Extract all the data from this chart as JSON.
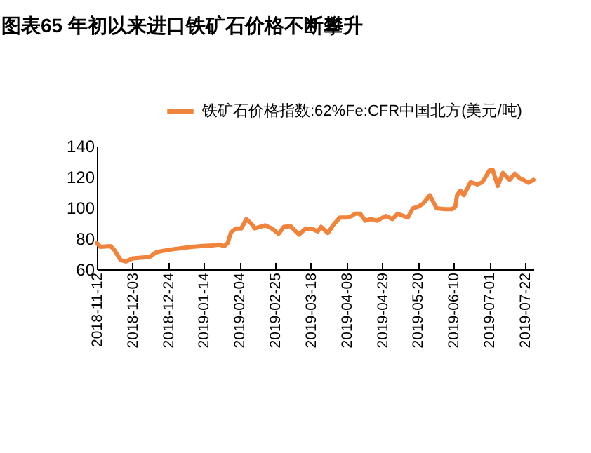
{
  "chart_data": {
    "type": "line",
    "title": "图表65 年初以来进口铁矿石价格不断攀升",
    "x": [
      "2018-11-12",
      "2018-11-14",
      "2018-11-20",
      "2018-11-22",
      "2018-11-26",
      "2018-11-29",
      "2018-12-03",
      "2018-12-08",
      "2018-12-13",
      "2018-12-17",
      "2018-12-21",
      "2018-12-27",
      "2019-01-03",
      "2019-01-07",
      "2019-01-12",
      "2019-01-19",
      "2019-01-23",
      "2019-01-26",
      "2019-01-28",
      "2019-01-30",
      "2019-02-02",
      "2019-02-05",
      "2019-02-08",
      "2019-02-11",
      "2019-02-13",
      "2019-02-19",
      "2019-02-23",
      "2019-02-27",
      "2019-03-02",
      "2019-03-06",
      "2019-03-11",
      "2019-03-15",
      "2019-03-19",
      "2019-03-22",
      "2019-03-24",
      "2019-03-28",
      "2019-03-31",
      "2019-04-04",
      "2019-04-08",
      "2019-04-11",
      "2019-04-13",
      "2019-04-16",
      "2019-04-19",
      "2019-04-22",
      "2019-04-26",
      "2019-05-01",
      "2019-05-05",
      "2019-05-08",
      "2019-05-14",
      "2019-05-17",
      "2019-05-20",
      "2019-05-23",
      "2019-05-27",
      "2019-05-31",
      "2019-06-05",
      "2019-06-09",
      "2019-06-11",
      "2019-06-12",
      "2019-06-14",
      "2019-06-16",
      "2019-06-20",
      "2019-06-24",
      "2019-06-27",
      "2019-07-01",
      "2019-07-03",
      "2019-07-06",
      "2019-07-09",
      "2019-07-13",
      "2019-07-16",
      "2019-07-19",
      "2019-07-21",
      "2019-07-24",
      "2019-07-27"
    ],
    "series": [
      {
        "name": "铁矿石价格指数:62%Fe:CFR中国北方(美元/吨)",
        "color": "#f0843c",
        "values": [
          77,
          74.5,
          75,
          73,
          66,
          65,
          67,
          67.5,
          68,
          71,
          72,
          73,
          74,
          74.5,
          75,
          75.5,
          76,
          75,
          77,
          84,
          86.5,
          86.5,
          92.5,
          89.5,
          86.5,
          88.5,
          86.5,
          83,
          87.5,
          88,
          82.5,
          86.5,
          86,
          84.5,
          87.5,
          83.5,
          88.5,
          93.5,
          93.5,
          94.5,
          96,
          96,
          91.5,
          92.5,
          91.5,
          94.5,
          92.5,
          96,
          93.5,
          99.5,
          100.5,
          102.5,
          108,
          99.5,
          99,
          99,
          100.5,
          108,
          111,
          108,
          116.5,
          115,
          116.5,
          124,
          124.5,
          114,
          122.5,
          118,
          122,
          119,
          118,
          116,
          118
        ]
      }
    ],
    "xlim": [
      "2018-11-12",
      "2019-07-27"
    ],
    "xticks": [
      "2018-11-12",
      "2018-12-03",
      "2018-12-24",
      "2019-01-14",
      "2019-02-04",
      "2019-02-25",
      "2019-03-18",
      "2019-04-08",
      "2019-04-29",
      "2019-05-20",
      "2019-06-10",
      "2019-07-01",
      "2019-07-22"
    ],
    "ylim": [
      60,
      140
    ],
    "yticks": [
      60,
      80,
      100,
      120,
      140
    ],
    "legend": "top",
    "grid": false,
    "line_style": "solid",
    "marker": "none"
  }
}
